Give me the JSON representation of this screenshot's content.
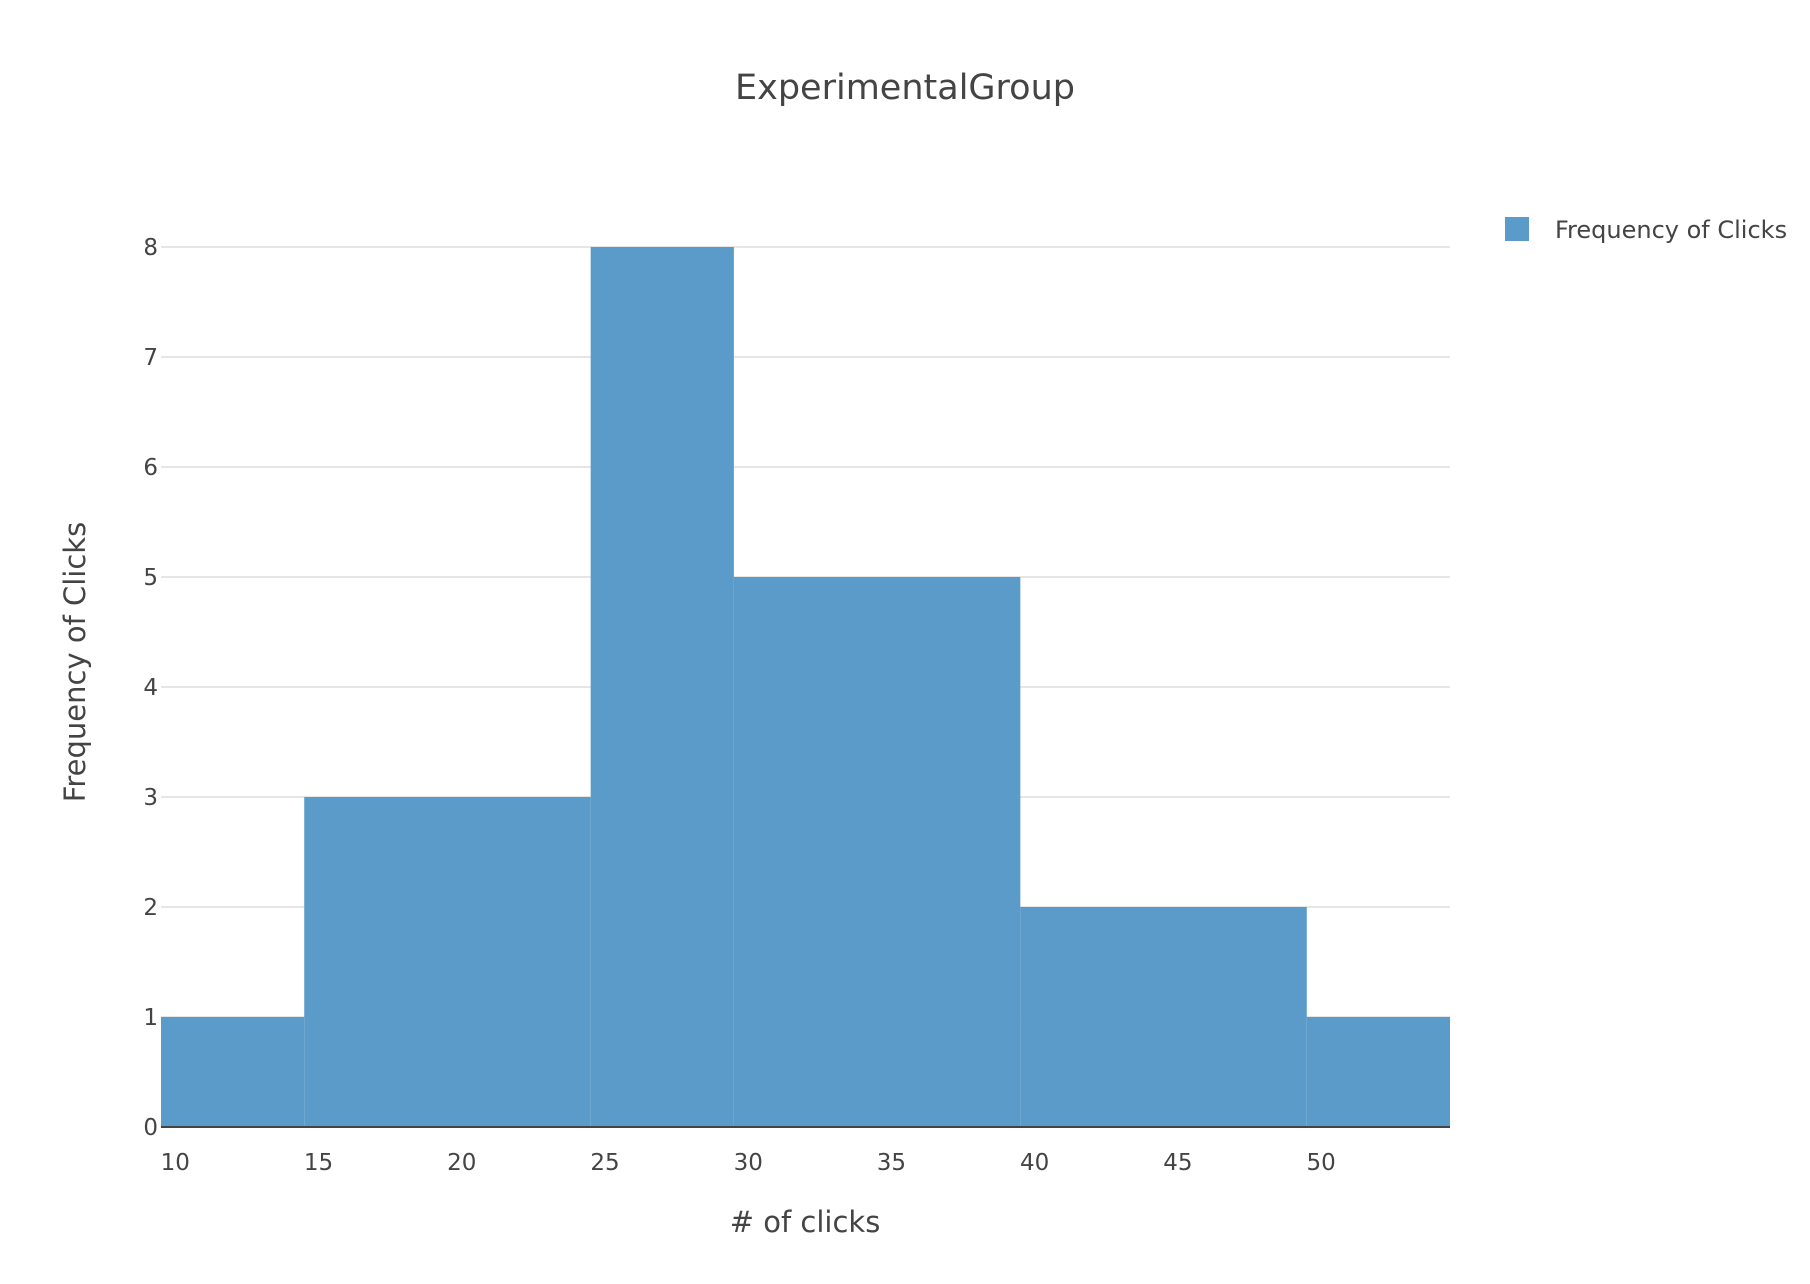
{
  "chart_data": {
    "type": "bar",
    "title": "ExperimentalGroup",
    "xlabel": "# of clicks",
    "ylabel": "Frequency of Clicks",
    "bins": [
      {
        "x0": 9.5,
        "x1": 14.5,
        "value": 1
      },
      {
        "x0": 14.5,
        "x1": 24.5,
        "value": 3
      },
      {
        "x0": 24.5,
        "x1": 29.5,
        "value": 8
      },
      {
        "x0": 29.5,
        "x1": 39.5,
        "value": 5
      },
      {
        "x0": 39.5,
        "x1": 49.5,
        "value": 2
      },
      {
        "x0": 49.5,
        "x1": 54.5,
        "value": 1
      }
    ],
    "series": [
      {
        "name": "Frequency of Clicks",
        "color": "#5b9bc9"
      }
    ],
    "xlim": [
      9.5,
      54.5
    ],
    "ylim": [
      0,
      8
    ],
    "xticks": [
      10,
      15,
      20,
      25,
      30,
      35,
      40,
      45,
      50
    ],
    "yticks": [
      0,
      1,
      2,
      3,
      4,
      5,
      6,
      7,
      8
    ],
    "grid": true,
    "legend_position": "top-right"
  }
}
